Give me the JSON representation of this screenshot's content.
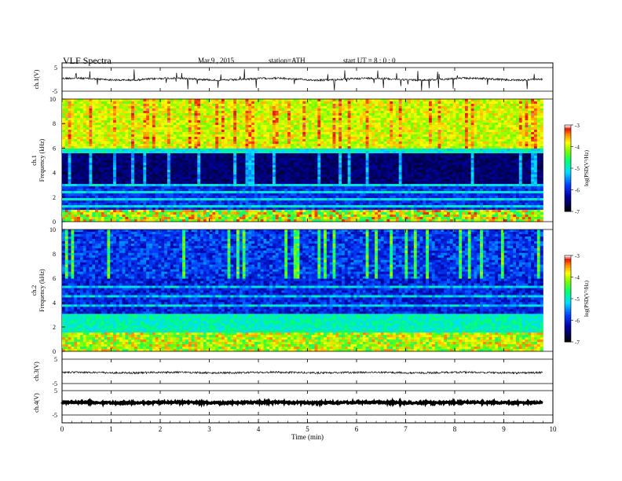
{
  "header": {
    "title": "VLF  Spectra",
    "date": "Mar.9  , 2015",
    "station": "station=ATH",
    "start": "start  UT  =   8  : 0  : 0"
  },
  "chart_data": [
    {
      "type": "line",
      "panel": "ch1-waveform",
      "ylabel": "ch.1(V)",
      "yticks": [
        "5",
        "-5"
      ],
      "ylim": [
        -5,
        5
      ],
      "xlim": [
        0,
        10
      ],
      "x_extent": [
        0,
        9.8
      ],
      "baseline": 0.1
    },
    {
      "type": "heatmap",
      "panel": "ch1-spectrogram",
      "ylabel_lines": [
        "ch.1",
        "Frequency  (kHz)"
      ],
      "ylim": [
        0,
        10
      ],
      "yticks": [
        "0",
        "2",
        "4",
        "6",
        "8",
        "10"
      ],
      "xlim": [
        0,
        10
      ],
      "x_extent": [
        0,
        9.8
      ],
      "colorbar": {
        "label": "log(PSD(V²/Hz)",
        "range": [
          -7,
          -3
        ],
        "ticks": [
          "-3",
          "-4",
          "-5",
          "-6",
          "-7"
        ]
      }
    },
    {
      "type": "heatmap",
      "panel": "ch2-spectrogram",
      "ylabel_lines": [
        "ch.2",
        "Frequency  (kHz)"
      ],
      "ylim": [
        0,
        10
      ],
      "yticks": [
        "0",
        "2",
        "4",
        "6",
        "8",
        "10"
      ],
      "xlim": [
        0,
        10
      ],
      "x_extent": [
        0,
        9.8
      ],
      "colorbar": {
        "label": "log(PSD(V²/Hz)",
        "range": [
          -7,
          -3
        ],
        "ticks": [
          "-3",
          "-4",
          "-5",
          "-6",
          "-7"
        ]
      }
    },
    {
      "type": "line",
      "panel": "ch3-waveform",
      "ylabel": "ch.3(V)",
      "yticks": [
        "5",
        "-5"
      ],
      "ylim": [
        -5,
        5
      ],
      "xlim": [
        0,
        10
      ],
      "x_extent": [
        0,
        9.8
      ],
      "baseline": -0.5
    },
    {
      "type": "line",
      "panel": "ch4-waveform",
      "ylabel": "ch.4(V)",
      "yticks": [
        "5",
        "-5"
      ],
      "ylim": [
        -5,
        5
      ],
      "xlim": [
        0,
        10
      ],
      "x_extent": [
        0,
        9.8
      ],
      "baseline": 0.1
    }
  ],
  "xaxis": {
    "label": "Time  (min)",
    "ticks": [
      "0",
      "1",
      "2",
      "3",
      "4",
      "5",
      "6",
      "7",
      "8",
      "9",
      "10"
    ]
  }
}
